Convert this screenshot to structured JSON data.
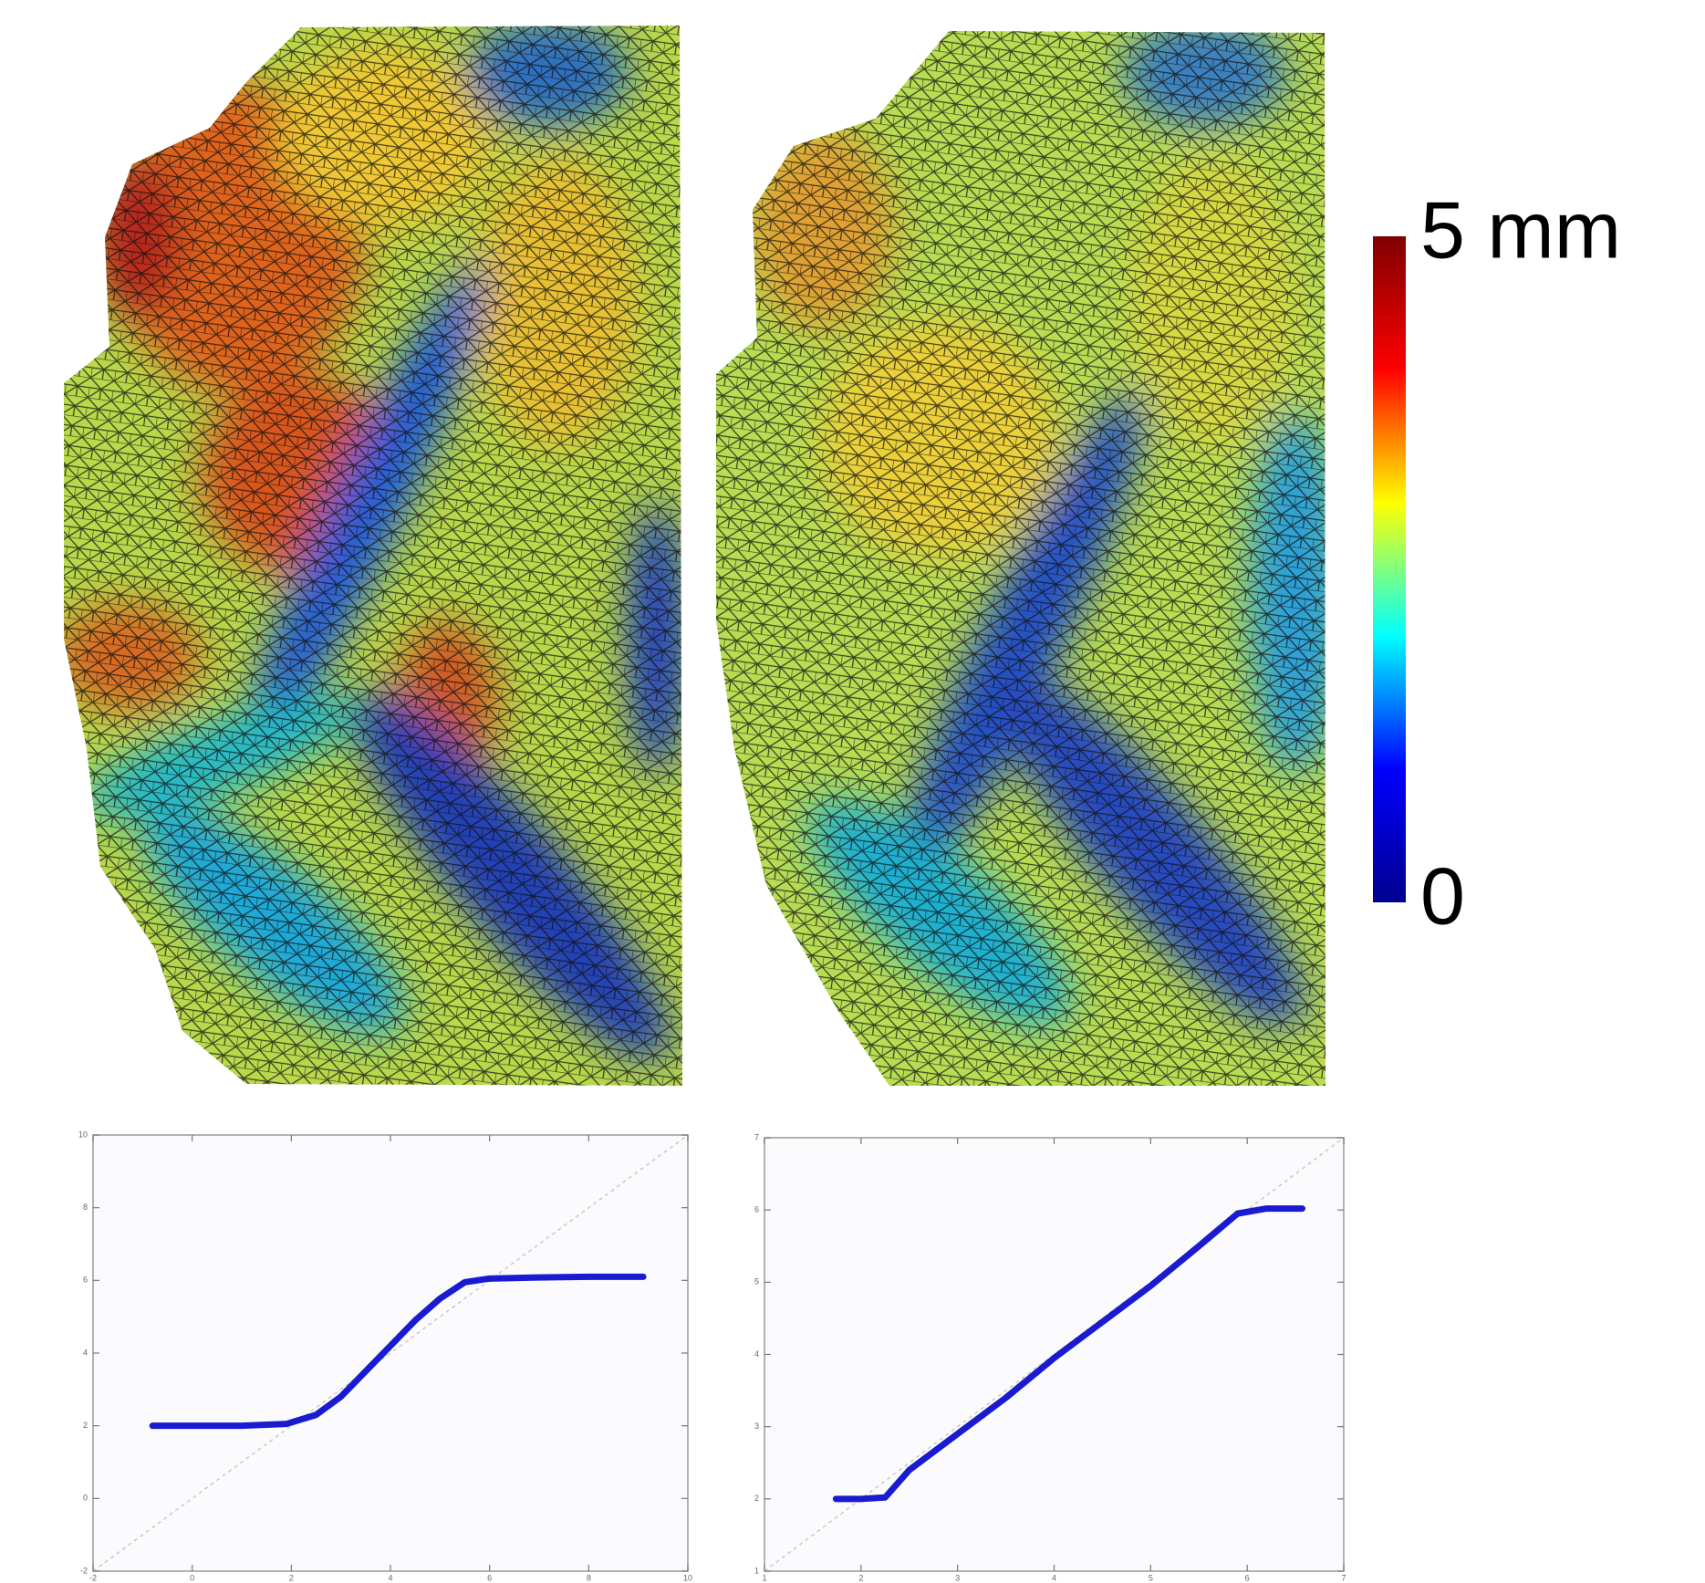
{
  "chart_data": [
    {
      "type": "colorbar",
      "clim": [
        0,
        5
      ],
      "ticks": [
        {
          "value": 5,
          "label": "5 mm"
        },
        0
      ],
      "colors": [
        "#00008f",
        "#0000ff",
        "#00ffff",
        "#ffff00",
        "#ff0000",
        "#800000"
      ]
    },
    {
      "type": "line",
      "xlim": [
        -2,
        10
      ],
      "ylim": [
        -2,
        10
      ],
      "xticks": [
        -2,
        0,
        2,
        4,
        6,
        8,
        10
      ],
      "yticks": [
        -2,
        0,
        2,
        4,
        6,
        8,
        10
      ],
      "series": [
        {
          "color": "#1a1ad0",
          "x": [
            -0.8,
            0,
            1,
            1.9,
            2.5,
            3,
            3.5,
            4,
            4.5,
            5,
            5.5,
            6,
            7,
            8,
            9.1
          ],
          "values": [
            2,
            2,
            2,
            2.05,
            2.3,
            2.8,
            3.5,
            4.2,
            4.9,
            5.5,
            5.95,
            6.05,
            6.08,
            6.1,
            6.1
          ]
        }
      ]
    },
    {
      "type": "line",
      "xlim": [
        1,
        7
      ],
      "ylim": [
        1,
        7
      ],
      "xticks": [
        1,
        2,
        3,
        4,
        5,
        6,
        7
      ],
      "yticks": [
        1,
        2,
        3,
        4,
        5,
        6,
        7
      ],
      "series": [
        {
          "color": "#1a1ad0",
          "x": [
            1.74,
            2,
            2.25,
            2.5,
            3,
            3.5,
            4,
            4.5,
            5,
            5.5,
            5.9,
            6.2,
            6.57
          ],
          "values": [
            2,
            2,
            2.02,
            2.4,
            2.9,
            3.4,
            3.95,
            4.45,
            4.95,
            5.5,
            5.95,
            6.02,
            6.02
          ]
        }
      ]
    }
  ]
}
